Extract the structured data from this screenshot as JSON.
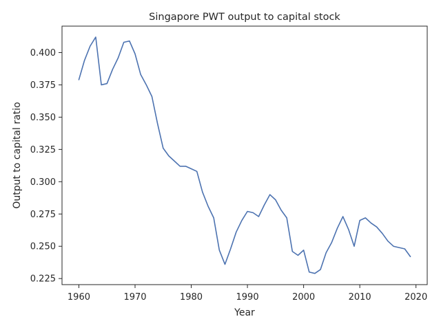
{
  "chart_data": {
    "type": "line",
    "title": "Singapore PWT output to capital stock",
    "xlabel": "Year",
    "ylabel": "Output to capital ratio",
    "xlim": [
      1957,
      2022
    ],
    "ylim": [
      0.2203,
      0.4205
    ],
    "xticks": [
      1960,
      1970,
      1980,
      1990,
      2000,
      2010,
      2020
    ],
    "xtick_labels": [
      "1960",
      "1970",
      "1980",
      "1990",
      "2000",
      "2010",
      "2020"
    ],
    "yticks": [
      0.225,
      0.25,
      0.275,
      0.3,
      0.325,
      0.35,
      0.375,
      0.4
    ],
    "ytick_labels": [
      "0.225",
      "0.250",
      "0.275",
      "0.300",
      "0.325",
      "0.350",
      "0.375",
      "0.400"
    ],
    "grid": false,
    "line_color": "#4c72b0",
    "series": [
      {
        "x": [
          1960,
          1961,
          1962,
          1963,
          1964,
          1965,
          1966,
          1967,
          1968,
          1969,
          1970,
          1971,
          1972,
          1973,
          1974,
          1975,
          1976,
          1977,
          1978,
          1979,
          1980,
          1981,
          1982,
          1983,
          1984,
          1985,
          1986,
          1987,
          1988,
          1989,
          1990,
          1991,
          1992,
          1993,
          1994,
          1995,
          1996,
          1997,
          1998,
          1999,
          2000,
          2001,
          2002,
          2003,
          2004,
          2005,
          2006,
          2007,
          2008,
          2009,
          2010,
          2011,
          2012,
          2013,
          2014,
          2015,
          2016,
          2017,
          2018,
          2019
        ],
        "values": [
          0.379,
          0.394,
          0.405,
          0.412,
          0.375,
          0.376,
          0.387,
          0.396,
          0.408,
          0.409,
          0.399,
          0.383,
          0.375,
          0.366,
          0.345,
          0.326,
          0.32,
          0.316,
          0.312,
          0.312,
          0.31,
          0.308,
          0.292,
          0.281,
          0.272,
          0.247,
          0.236,
          0.248,
          0.261,
          0.27,
          0.277,
          0.276,
          0.273,
          0.282,
          0.29,
          0.286,
          0.278,
          0.272,
          0.246,
          0.243,
          0.247,
          0.23,
          0.229,
          0.232,
          0.245,
          0.253,
          0.264,
          0.273,
          0.263,
          0.25,
          0.27,
          0.272,
          0.268,
          0.265,
          0.26,
          0.254,
          0.25,
          0.249,
          0.248,
          0.242
        ]
      }
    ]
  }
}
